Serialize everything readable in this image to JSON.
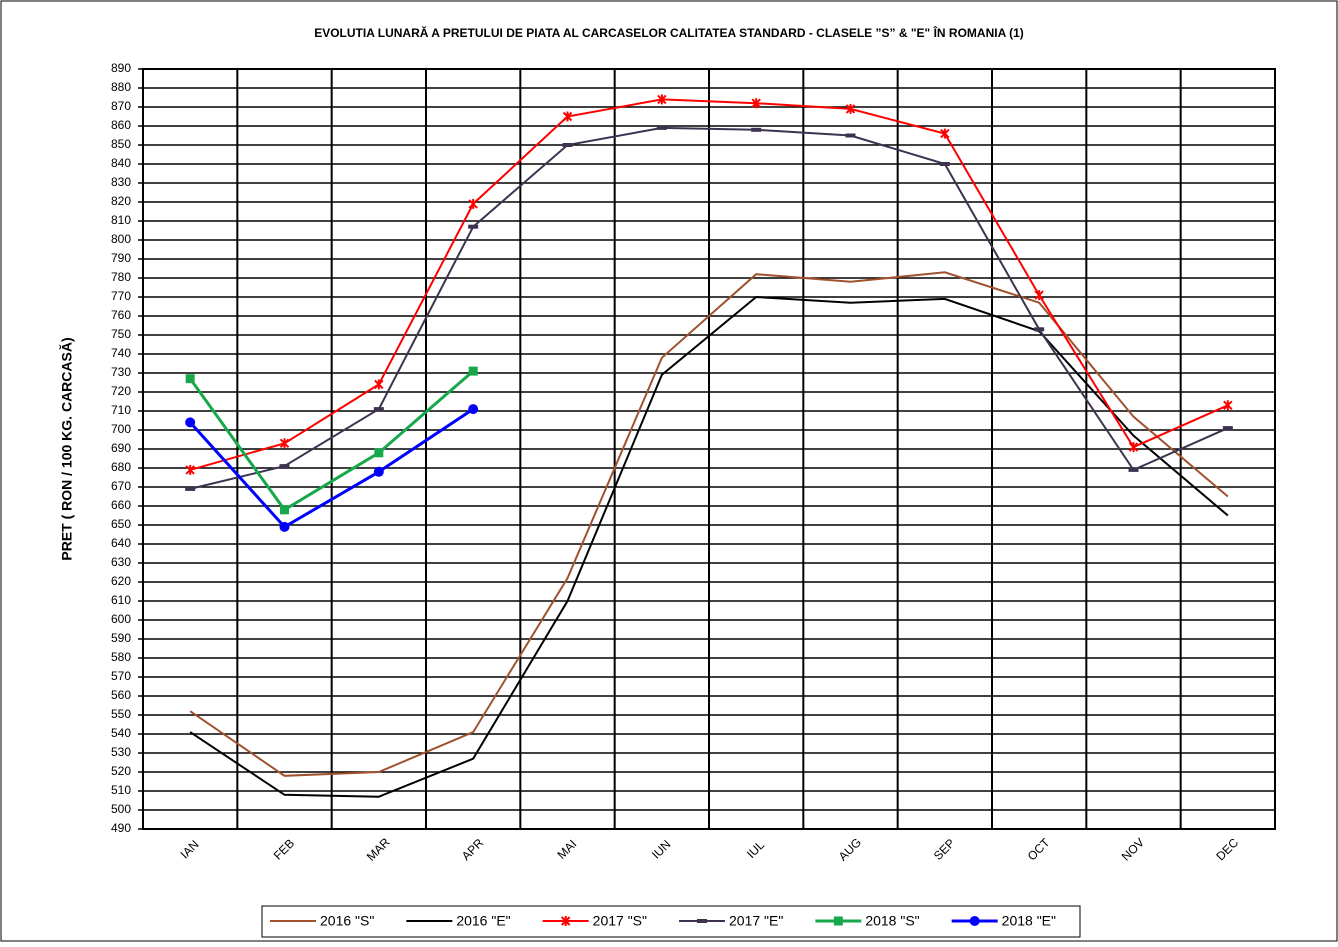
{
  "chart_data": {
    "type": "line",
    "title": "EVOLUTIA LUNARĂ A PRETULUI  DE PIATA  AL CARCASELOR CALITATEA STANDARD - CLASELE ”S” & \"E\"  ÎN ROMANIA (1)",
    "y_label": "PRET ( RON / 100 KG. CARCASĂ)",
    "categories": [
      "IAN",
      "FEB",
      "MAR",
      "APR",
      "MAI",
      "IUN",
      "IUL",
      "AUG",
      "SEP",
      "OCT",
      "NOV",
      "DEC"
    ],
    "ylim": [
      490,
      890
    ],
    "yticks": [
      490,
      500,
      510,
      520,
      530,
      540,
      550,
      560,
      570,
      580,
      590,
      600,
      610,
      620,
      630,
      640,
      650,
      660,
      670,
      680,
      690,
      700,
      710,
      720,
      730,
      740,
      750,
      760,
      770,
      780,
      790,
      800,
      810,
      820,
      830,
      840,
      850,
      860,
      870,
      880,
      890
    ],
    "grid": true,
    "legend": "bottom",
    "series": [
      {
        "name": "2016 \"S\"",
        "color": "#a0522d",
        "marker": "none",
        "values": [
          552,
          518,
          520,
          541,
          622,
          738,
          782,
          778,
          783,
          767,
          707,
          665
        ]
      },
      {
        "name": "2016 \"E\"",
        "color": "#000000",
        "marker": "none",
        "values": [
          541,
          508,
          507,
          527,
          610,
          729,
          770,
          767,
          769,
          752,
          697,
          655
        ]
      },
      {
        "name": "2017 \"S\"",
        "color": "#ff0000",
        "marker": "x",
        "values": [
          679,
          693,
          724,
          819,
          865,
          874,
          872,
          869,
          856,
          771,
          691,
          713
        ]
      },
      {
        "name": "2017 \"E\"",
        "color": "#3d3350",
        "marker": "dash",
        "values": [
          669,
          681,
          711,
          807,
          850,
          859,
          858,
          855,
          840,
          753,
          679,
          701
        ]
      },
      {
        "name": "2018 \"S\"",
        "color": "#16a84a",
        "marker": "square",
        "values": [
          727,
          658,
          688,
          731,
          null,
          null,
          null,
          null,
          null,
          null,
          null,
          null
        ]
      },
      {
        "name": "2018 \"E\"",
        "color": "#0000ff",
        "marker": "circle",
        "values": [
          704,
          649,
          678,
          711,
          null,
          null,
          null,
          null,
          null,
          null,
          null,
          null
        ]
      }
    ]
  }
}
